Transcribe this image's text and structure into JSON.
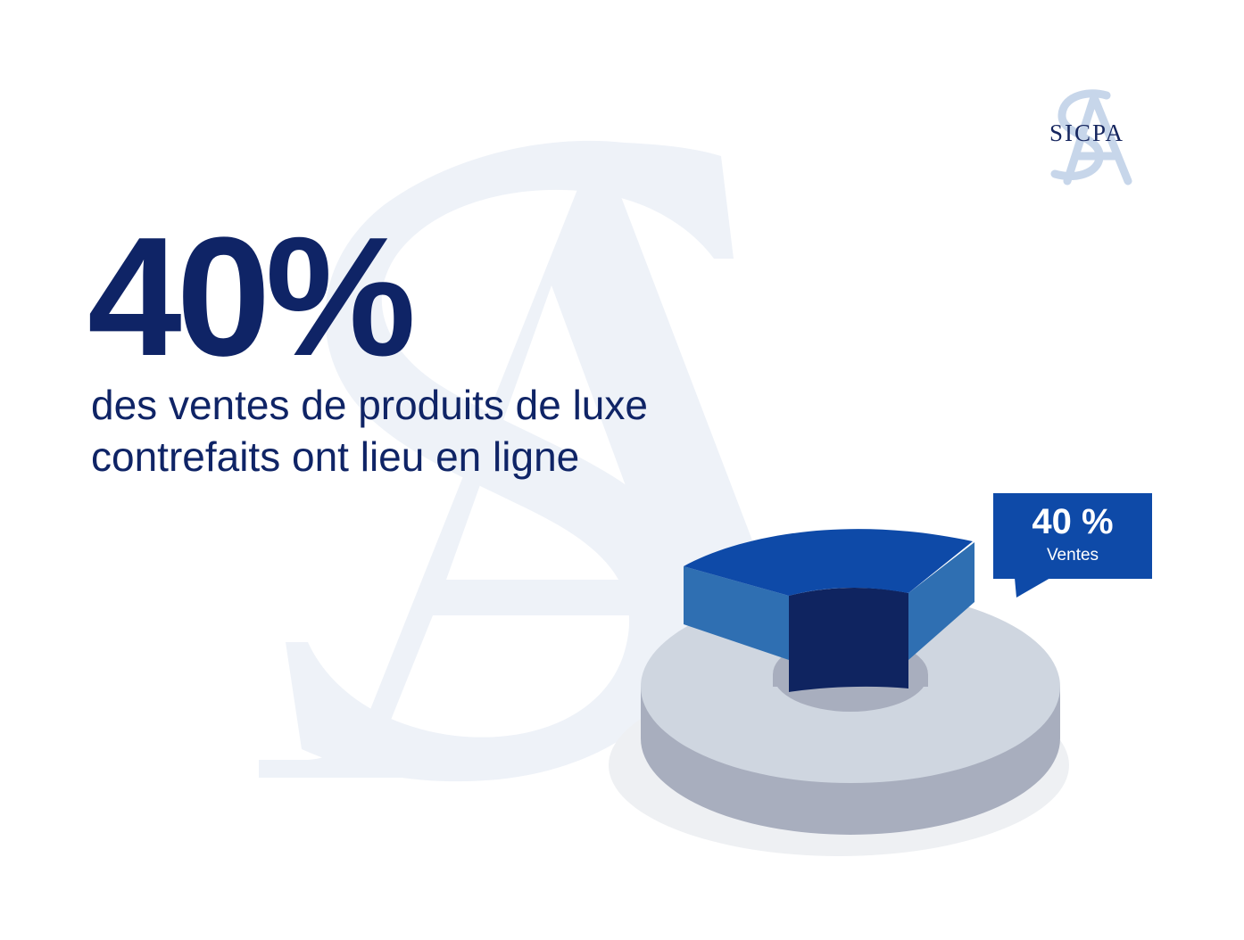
{
  "brand": {
    "logo_text": "SICPA",
    "logo_icon": "sicpa-monogram-icon",
    "colors": {
      "navy": "#0f2466",
      "watermark": "#eef2f8",
      "logo_mark": "#c7d6ea"
    }
  },
  "headline": {
    "value": "40%"
  },
  "subtitle": {
    "line1": "des ventes de produits de luxe",
    "line2": "contrefaits ont lieu en ligne"
  },
  "callout": {
    "value": "40 %",
    "label": "Ventes"
  },
  "chart_data": {
    "type": "pie",
    "style": "3d-donut",
    "slices": [
      {
        "label": "Ventes",
        "value": 40,
        "color": "#0e4aa8"
      },
      {
        "label": "",
        "value": 60,
        "color": "#cfd6e0"
      }
    ]
  }
}
